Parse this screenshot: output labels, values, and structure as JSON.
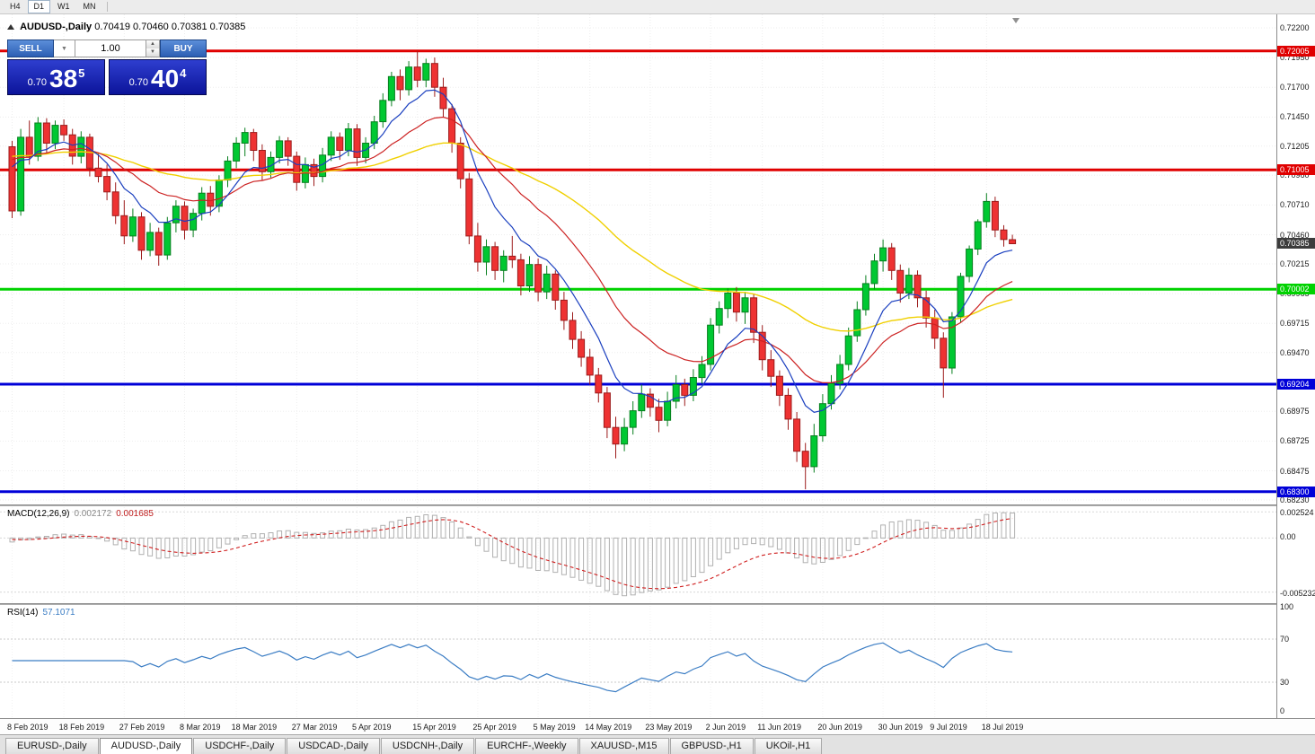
{
  "toolbar": {
    "timeframes": [
      {
        "label": "H4",
        "active": false
      },
      {
        "label": "D1",
        "active": true
      },
      {
        "label": "W1",
        "active": false
      },
      {
        "label": "MN",
        "active": false
      }
    ]
  },
  "window": {
    "title_symbol": "AUDUSD-,Daily",
    "title_ohlc": "0.70419 0.70460 0.70381 0.70385"
  },
  "trade_panel": {
    "sell_label": "SELL",
    "buy_label": "BUY",
    "volume": "1.00",
    "sell_price_prefix": "0.70",
    "sell_price_big": "38",
    "sell_price_sup": "5",
    "buy_price_prefix": "0.70",
    "buy_price_big": "40",
    "buy_price_sup": "4"
  },
  "price_axis": {
    "ticks": [
      "0.72200",
      "0.71950",
      "0.71700",
      "0.71450",
      "0.71205",
      "0.70960",
      "0.70710",
      "0.70460",
      "0.70215",
      "0.69965",
      "0.69715",
      "0.69470",
      "0.68975",
      "0.68725",
      "0.68475",
      "0.68230"
    ]
  },
  "levels": [
    {
      "value": "0.72005",
      "color": "#e00000"
    },
    {
      "value": "0.71005",
      "color": "#e00000"
    },
    {
      "value": "0.70002",
      "color": "#00d200"
    },
    {
      "value": "0.69204",
      "color": "#0000d8"
    },
    {
      "value": "0.68300",
      "color": "#0000d8"
    }
  ],
  "current_price": {
    "value": "0.70385",
    "bg": "#3c3c3c"
  },
  "macd": {
    "name": "MACD(12,26,9)",
    "value1": "0.002172",
    "value2": "0.001685",
    "axis_top": "0.002524",
    "axis_zero": "0.00",
    "axis_bottom": "-0.0052324"
  },
  "rsi": {
    "name": "RSI(14)",
    "value": "57.1071",
    "axis": [
      "100",
      "70",
      "30",
      "0"
    ],
    "levels": [
      70,
      30
    ]
  },
  "tabs": [
    {
      "label": "EURUSD-,Daily",
      "active": false
    },
    {
      "label": "AUDUSD-,Daily",
      "active": true
    },
    {
      "label": "USDCHF-,Daily",
      "active": false
    },
    {
      "label": "USDCAD-,Daily",
      "active": false
    },
    {
      "label": "USDCNH-,Daily",
      "active": false
    },
    {
      "label": "EURCHF-,Weekly",
      "active": false
    },
    {
      "label": "XAUUSD-,M15",
      "active": false
    },
    {
      "label": "GBPUSD-,H1",
      "active": false
    },
    {
      "label": "UKOil-,H1",
      "active": false
    }
  ],
  "chart_data": {
    "type": "candlestick",
    "symbol": "AUDUSD",
    "timeframe": "Daily",
    "title": "AUDUSD-,Daily",
    "ohlc_current": {
      "open": "0.70419",
      "high": "0.70460",
      "low": "0.70381",
      "close": "0.70385"
    },
    "ylim": [
      0.6823,
      0.722
    ],
    "grid": true,
    "colors": {
      "up_fill": "#00c832",
      "up_border": "#077f1e",
      "down_fill": "#ee3232",
      "down_border": "#9c1b1b",
      "ma_fast": "#1a3fbf",
      "ma_mid": "#cc2222",
      "ma_slow": "#f0d000",
      "macd_hist": "#b0b0b0",
      "macd_signal": "#d02020",
      "rsi_line": "#3b7dc4"
    },
    "x_ticks": [
      {
        "label": "8 Feb 2019",
        "i": 0
      },
      {
        "label": "18 Feb 2019",
        "i": 6
      },
      {
        "label": "27 Feb 2019",
        "i": 13
      },
      {
        "label": "8 Mar 2019",
        "i": 20
      },
      {
        "label": "18 Mar 2019",
        "i": 26
      },
      {
        "label": "27 Mar 2019",
        "i": 33
      },
      {
        "label": "5 Apr 2019",
        "i": 40
      },
      {
        "label": "15 Apr 2019",
        "i": 47
      },
      {
        "label": "25 Apr 2019",
        "i": 54
      },
      {
        "label": "5 May 2019",
        "i": 61
      },
      {
        "label": "14 May 2019",
        "i": 67
      },
      {
        "label": "23 May 2019",
        "i": 74
      },
      {
        "label": "2 Jun 2019",
        "i": 81
      },
      {
        "label": "11 Jun 2019",
        "i": 87
      },
      {
        "label": "20 Jun 2019",
        "i": 94
      },
      {
        "label": "30 Jun 2019",
        "i": 101
      },
      {
        "label": "9 Jul 2019",
        "i": 107
      },
      {
        "label": "18 Jul 2019",
        "i": 113
      }
    ],
    "candles": [
      [
        0.712,
        0.7125,
        0.706,
        0.7066
      ],
      [
        0.7066,
        0.7135,
        0.7062,
        0.7128
      ],
      [
        0.7128,
        0.7142,
        0.7105,
        0.7112
      ],
      [
        0.7112,
        0.7145,
        0.7108,
        0.714
      ],
      [
        0.714,
        0.7144,
        0.7115,
        0.7123
      ],
      [
        0.7123,
        0.7142,
        0.7118,
        0.7138
      ],
      [
        0.7138,
        0.7143,
        0.7125,
        0.713
      ],
      [
        0.713,
        0.7135,
        0.7105,
        0.7112
      ],
      [
        0.7112,
        0.7133,
        0.7106,
        0.7128
      ],
      [
        0.7128,
        0.7131,
        0.7095,
        0.7102
      ],
      [
        0.7102,
        0.7115,
        0.709,
        0.7095
      ],
      [
        0.7095,
        0.7105,
        0.7075,
        0.7082
      ],
      [
        0.7082,
        0.709,
        0.7055,
        0.7062
      ],
      [
        0.7062,
        0.7075,
        0.7038,
        0.7045
      ],
      [
        0.7045,
        0.7068,
        0.704,
        0.7061
      ],
      [
        0.7061,
        0.7065,
        0.7025,
        0.7033
      ],
      [
        0.7033,
        0.7056,
        0.7028,
        0.7048
      ],
      [
        0.7048,
        0.7052,
        0.702,
        0.7029
      ],
      [
        0.7029,
        0.7061,
        0.7025,
        0.7056
      ],
      [
        0.7056,
        0.7075,
        0.7048,
        0.707
      ],
      [
        0.707,
        0.7074,
        0.7042,
        0.705
      ],
      [
        0.705,
        0.7068,
        0.7044,
        0.7064
      ],
      [
        0.7064,
        0.7086,
        0.7058,
        0.7081
      ],
      [
        0.7081,
        0.7087,
        0.7062,
        0.707
      ],
      [
        0.707,
        0.7096,
        0.7065,
        0.7092
      ],
      [
        0.7092,
        0.7112,
        0.7086,
        0.7108
      ],
      [
        0.7108,
        0.7128,
        0.7102,
        0.7123
      ],
      [
        0.7123,
        0.7136,
        0.7112,
        0.7132
      ],
      [
        0.7132,
        0.7135,
        0.7108,
        0.7117
      ],
      [
        0.7117,
        0.7122,
        0.7092,
        0.7099
      ],
      [
        0.7099,
        0.7116,
        0.7094,
        0.7111
      ],
      [
        0.7111,
        0.7129,
        0.7106,
        0.7125
      ],
      [
        0.7125,
        0.7128,
        0.7104,
        0.7112
      ],
      [
        0.7112,
        0.7116,
        0.7083,
        0.709
      ],
      [
        0.709,
        0.7111,
        0.7085,
        0.7105
      ],
      [
        0.7105,
        0.711,
        0.7087,
        0.7095
      ],
      [
        0.7095,
        0.7119,
        0.709,
        0.7113
      ],
      [
        0.7113,
        0.7133,
        0.7108,
        0.7128
      ],
      [
        0.7128,
        0.7132,
        0.7109,
        0.7117
      ],
      [
        0.7117,
        0.714,
        0.7112,
        0.7135
      ],
      [
        0.7135,
        0.7139,
        0.7104,
        0.7111
      ],
      [
        0.7111,
        0.7128,
        0.7106,
        0.7123
      ],
      [
        0.7123,
        0.7146,
        0.7118,
        0.7141
      ],
      [
        0.7141,
        0.7165,
        0.7136,
        0.7159
      ],
      [
        0.7159,
        0.7183,
        0.7154,
        0.7179
      ],
      [
        0.7179,
        0.7185,
        0.7159,
        0.7168
      ],
      [
        0.7168,
        0.7192,
        0.7163,
        0.7187
      ],
      [
        0.7187,
        0.72005,
        0.717,
        0.7176
      ],
      [
        0.7176,
        0.7194,
        0.717,
        0.719
      ],
      [
        0.719,
        0.7195,
        0.7162,
        0.717
      ],
      [
        0.717,
        0.7178,
        0.7145,
        0.7152
      ],
      [
        0.7152,
        0.7156,
        0.7115,
        0.7123
      ],
      [
        0.7123,
        0.7128,
        0.7085,
        0.7093
      ],
      [
        0.7093,
        0.7098,
        0.7038,
        0.7045
      ],
      [
        0.7045,
        0.7056,
        0.7015,
        0.7023
      ],
      [
        0.7023,
        0.7042,
        0.7012,
        0.7036
      ],
      [
        0.7036,
        0.704,
        0.7008,
        0.7016
      ],
      [
        0.7016,
        0.7033,
        0.7006,
        0.7028
      ],
      [
        0.7028,
        0.7045,
        0.7018,
        0.7025
      ],
      [
        0.7025,
        0.703,
        0.6995,
        0.7003
      ],
      [
        0.7003,
        0.7028,
        0.6998,
        0.7021
      ],
      [
        0.7021,
        0.7026,
        0.699,
        0.6998
      ],
      [
        0.6998,
        0.702,
        0.6992,
        0.7013
      ],
      [
        0.7013,
        0.7016,
        0.6983,
        0.6991
      ],
      [
        0.6991,
        0.6998,
        0.6966,
        0.6974
      ],
      [
        0.6974,
        0.6981,
        0.695,
        0.6958
      ],
      [
        0.6958,
        0.6965,
        0.6935,
        0.6943
      ],
      [
        0.6943,
        0.695,
        0.692,
        0.6928
      ],
      [
        0.6928,
        0.6934,
        0.6905,
        0.6913
      ],
      [
        0.6913,
        0.6918,
        0.6875,
        0.6884
      ],
      [
        0.6884,
        0.6893,
        0.6858,
        0.687
      ],
      [
        0.687,
        0.6892,
        0.6864,
        0.6884
      ],
      [
        0.6884,
        0.6906,
        0.6878,
        0.6898
      ],
      [
        0.6898,
        0.692,
        0.6892,
        0.6912
      ],
      [
        0.6912,
        0.6917,
        0.6893,
        0.6901
      ],
      [
        0.6901,
        0.6908,
        0.688,
        0.689
      ],
      [
        0.689,
        0.6914,
        0.6885,
        0.6906
      ],
      [
        0.6906,
        0.6928,
        0.69,
        0.692
      ],
      [
        0.692,
        0.6925,
        0.6902,
        0.6911
      ],
      [
        0.6911,
        0.6933,
        0.6906,
        0.6926
      ],
      [
        0.6926,
        0.6944,
        0.6921,
        0.6937
      ],
      [
        0.6937,
        0.6976,
        0.6932,
        0.697
      ],
      [
        0.697,
        0.699,
        0.6963,
        0.6984
      ],
      [
        0.6984,
        0.7001,
        0.6976,
        0.6997
      ],
      [
        0.6997,
        0.7002,
        0.6973,
        0.6981
      ],
      [
        0.6981,
        0.6998,
        0.6971,
        0.6993
      ],
      [
        0.6993,
        0.6996,
        0.6955,
        0.6964
      ],
      [
        0.6964,
        0.697,
        0.6932,
        0.6941
      ],
      [
        0.6941,
        0.6949,
        0.6918,
        0.6927
      ],
      [
        0.6927,
        0.6932,
        0.6902,
        0.6911
      ],
      [
        0.6911,
        0.6917,
        0.6882,
        0.6891
      ],
      [
        0.6891,
        0.6897,
        0.6855,
        0.6864
      ],
      [
        0.6864,
        0.6871,
        0.6832,
        0.6851
      ],
      [
        0.6851,
        0.6887,
        0.6846,
        0.6877
      ],
      [
        0.6877,
        0.6912,
        0.6872,
        0.6904
      ],
      [
        0.6904,
        0.6928,
        0.6899,
        0.6921
      ],
      [
        0.6921,
        0.6945,
        0.6916,
        0.6937
      ],
      [
        0.6937,
        0.6968,
        0.6932,
        0.6961
      ],
      [
        0.6961,
        0.699,
        0.6956,
        0.6983
      ],
      [
        0.6983,
        0.7012,
        0.6978,
        0.7005
      ],
      [
        0.7005,
        0.703,
        0.7,
        0.7024
      ],
      [
        0.7024,
        0.7042,
        0.7015,
        0.7035
      ],
      [
        0.7035,
        0.7039,
        0.7008,
        0.7016
      ],
      [
        0.7016,
        0.7021,
        0.6989,
        0.6997
      ],
      [
        0.6997,
        0.7018,
        0.6992,
        0.7012
      ],
      [
        0.7012,
        0.7016,
        0.6985,
        0.6993
      ],
      [
        0.6993,
        0.6999,
        0.6968,
        0.6976
      ],
      [
        0.6976,
        0.6983,
        0.695,
        0.6959
      ],
      [
        0.6959,
        0.6964,
        0.6909,
        0.6934
      ],
      [
        0.6934,
        0.6981,
        0.6929,
        0.6977
      ],
      [
        0.6977,
        0.7014,
        0.6972,
        0.7011
      ],
      [
        0.7011,
        0.7037,
        0.7006,
        0.7034
      ],
      [
        0.7034,
        0.7059,
        0.7029,
        0.7057
      ],
      [
        0.7057,
        0.7081,
        0.7052,
        0.7074
      ],
      [
        0.7074,
        0.7078,
        0.7044,
        0.705
      ],
      [
        0.705,
        0.7054,
        0.7036,
        0.7042
      ],
      [
        0.70419,
        0.7046,
        0.70381,
        0.70385
      ]
    ]
  }
}
